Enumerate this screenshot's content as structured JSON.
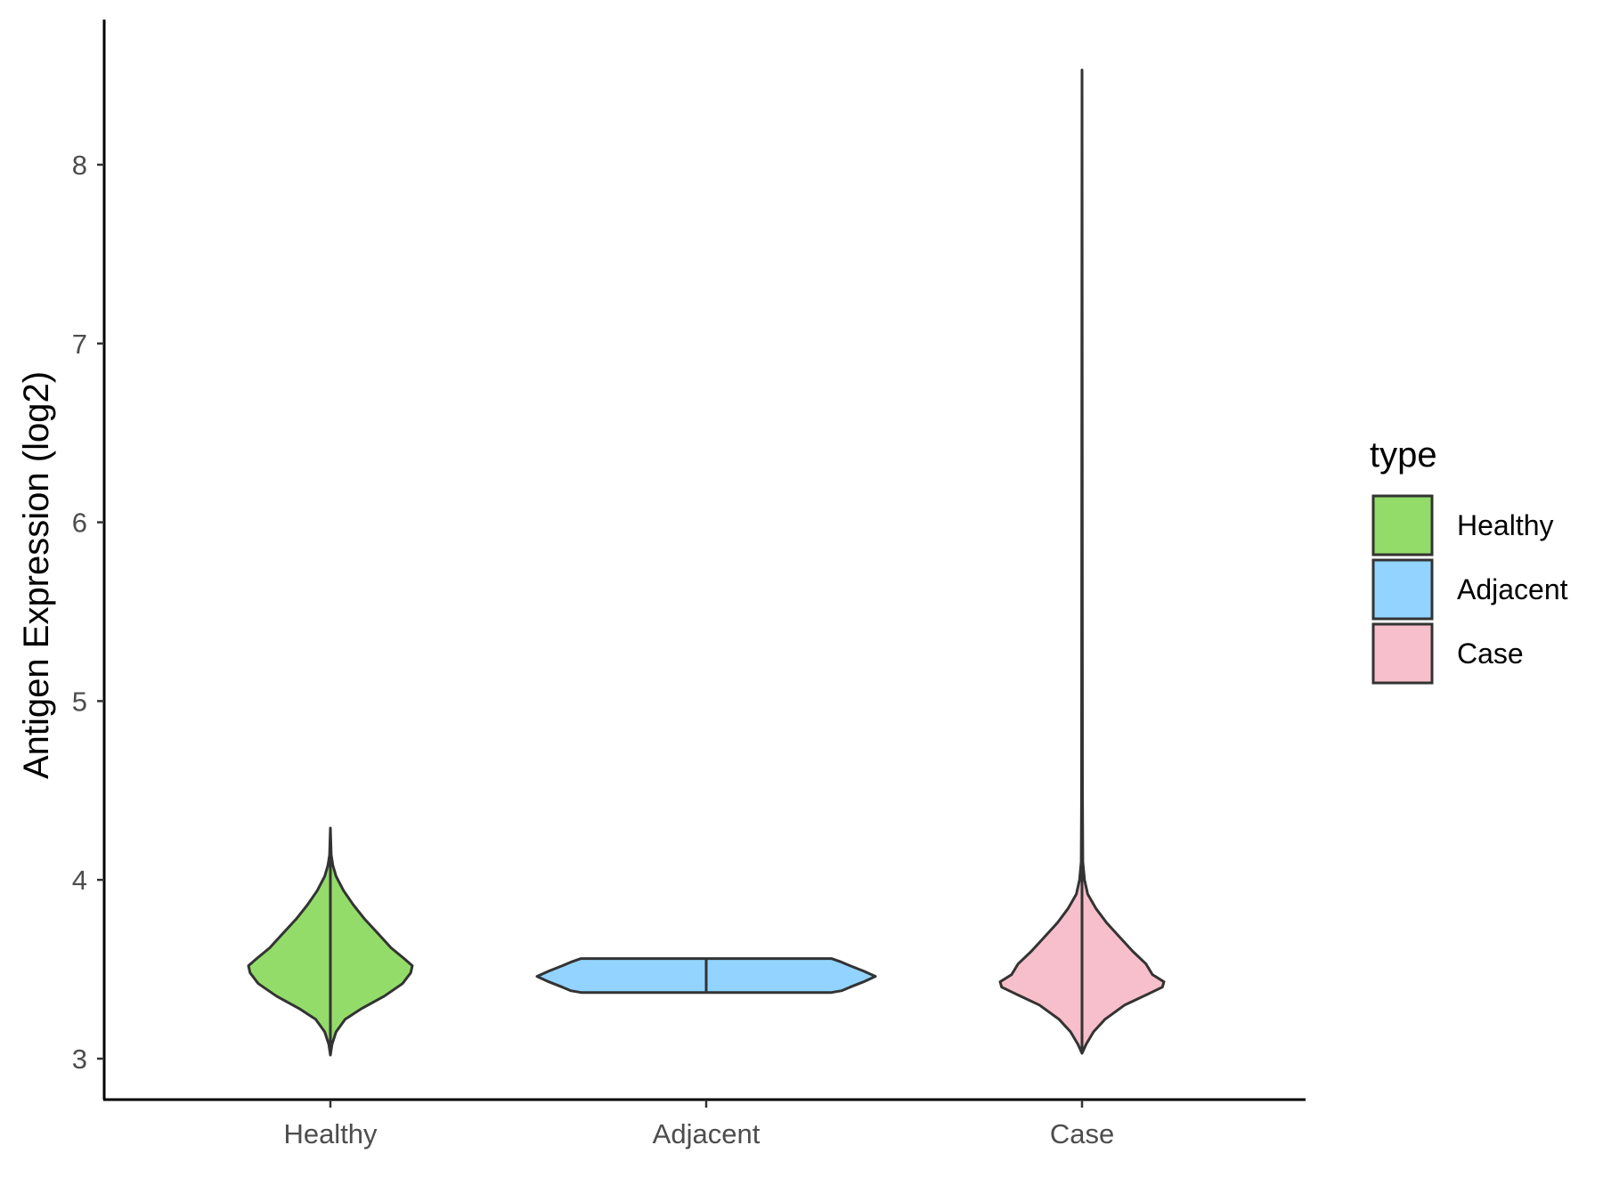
{
  "chart_data": {
    "type": "violin",
    "title": "",
    "xlabel": "",
    "ylabel": "Antigen Expression (log2)",
    "categories": [
      "Healthy",
      "Adjacent",
      "Case"
    ],
    "y_ticks": [
      3,
      4,
      5,
      6,
      7,
      8
    ],
    "ylim": [
      2.75,
      8.9
    ],
    "grid": false,
    "legend": {
      "title": "type",
      "position": "right",
      "entries": [
        {
          "label": "Healthy",
          "color": "#93DC6A"
        },
        {
          "label": "Adjacent",
          "color": "#92D4FF"
        },
        {
          "label": "Case",
          "color": "#F7BFCB"
        }
      ]
    },
    "series": [
      {
        "category": "Healthy",
        "color": "#93DC6A",
        "min": 3.02,
        "max": 4.29,
        "density": [
          [
            3.02,
            0.0
          ],
          [
            3.08,
            0.02
          ],
          [
            3.15,
            0.07
          ],
          [
            3.22,
            0.18
          ],
          [
            3.28,
            0.38
          ],
          [
            3.35,
            0.66
          ],
          [
            3.42,
            0.88
          ],
          [
            3.48,
            0.98
          ],
          [
            3.52,
            1.0
          ],
          [
            3.56,
            0.9
          ],
          [
            3.62,
            0.74
          ],
          [
            3.7,
            0.58
          ],
          [
            3.78,
            0.42
          ],
          [
            3.86,
            0.28
          ],
          [
            3.94,
            0.16
          ],
          [
            4.02,
            0.07
          ],
          [
            4.08,
            0.03
          ],
          [
            4.14,
            0.01
          ],
          [
            4.29,
            0.0
          ]
        ]
      },
      {
        "category": "Adjacent",
        "color": "#92D4FF",
        "min": 3.37,
        "max": 3.56,
        "density": [
          [
            3.37,
            0.74
          ],
          [
            3.38,
            0.8
          ],
          [
            3.4,
            0.85
          ],
          [
            3.43,
            0.93
          ],
          [
            3.46,
            1.0
          ],
          [
            3.49,
            0.93
          ],
          [
            3.52,
            0.85
          ],
          [
            3.54,
            0.8
          ],
          [
            3.56,
            0.74
          ]
        ]
      },
      {
        "category": "Case",
        "color": "#F7BFCB",
        "min": 3.03,
        "max": 8.53,
        "density": [
          [
            3.03,
            0.0
          ],
          [
            3.08,
            0.05
          ],
          [
            3.15,
            0.14
          ],
          [
            3.22,
            0.28
          ],
          [
            3.3,
            0.52
          ],
          [
            3.36,
            0.8
          ],
          [
            3.4,
            0.98
          ],
          [
            3.43,
            1.0
          ],
          [
            3.47,
            0.86
          ],
          [
            3.53,
            0.78
          ],
          [
            3.6,
            0.62
          ],
          [
            3.68,
            0.46
          ],
          [
            3.76,
            0.3
          ],
          [
            3.84,
            0.17
          ],
          [
            3.92,
            0.07
          ],
          [
            4.0,
            0.03
          ],
          [
            4.1,
            0.01
          ],
          [
            4.5,
            0.005
          ],
          [
            8.53,
            0.0
          ]
        ]
      }
    ]
  }
}
